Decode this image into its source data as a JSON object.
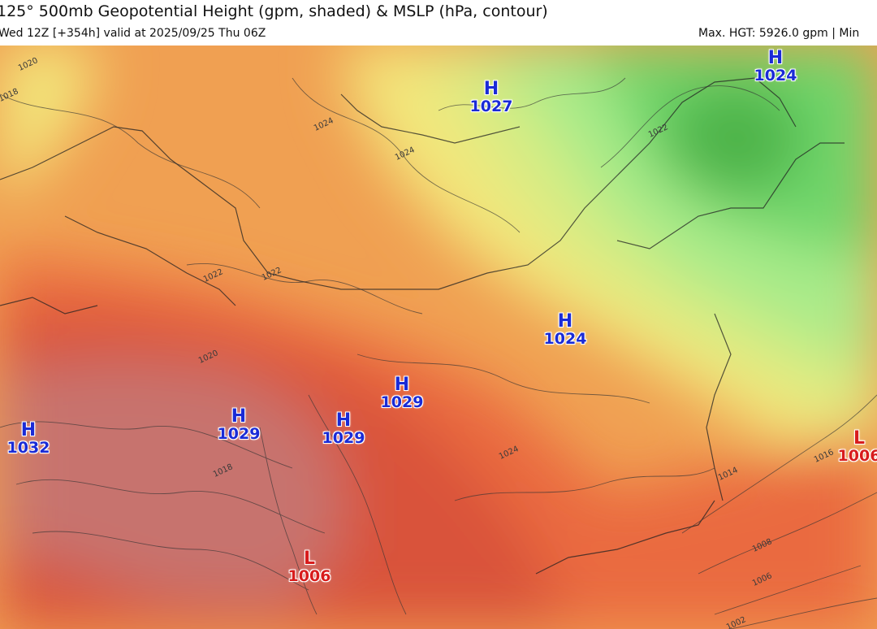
{
  "header": {
    "title": "125° 500mb Geopotential Height (gpm, shaded) & MSLP (hPa, contour)",
    "init_valid": "Wed 12Z [+354h] valid at 2025/09/25 Thu 06Z",
    "max_info": "Max. HGT: 5926.0 gpm | Min"
  },
  "colors": {
    "high_label": "#1a2bd6",
    "low_label": "#d81c1c",
    "height_bands": [
      "#c7736e",
      "#d9533a",
      "#ea6a3f",
      "#f0a052",
      "#f6c86a",
      "#f3e77c",
      "#d8ec84",
      "#a8eb8a",
      "#6fd66b",
      "#4db34a"
    ]
  },
  "pressure_centers": [
    {
      "type": "H",
      "value": "1027"
    },
    {
      "type": "H",
      "value": "1024"
    },
    {
      "type": "H",
      "value": "1024"
    },
    {
      "type": "H",
      "value": "1032"
    },
    {
      "type": "H",
      "value": "1029"
    },
    {
      "type": "H",
      "value": "1029"
    },
    {
      "type": "H",
      "value": "1029"
    },
    {
      "type": "L",
      "value": "1006"
    },
    {
      "type": "L",
      "value": "1006"
    }
  ],
  "contour_labels": [
    "1020",
    "1018",
    "1024",
    "1024",
    "1022",
    "1022",
    "1022",
    "1020",
    "1018",
    "1024",
    "1014",
    "1016",
    "1008",
    "1006",
    "1002"
  ]
}
